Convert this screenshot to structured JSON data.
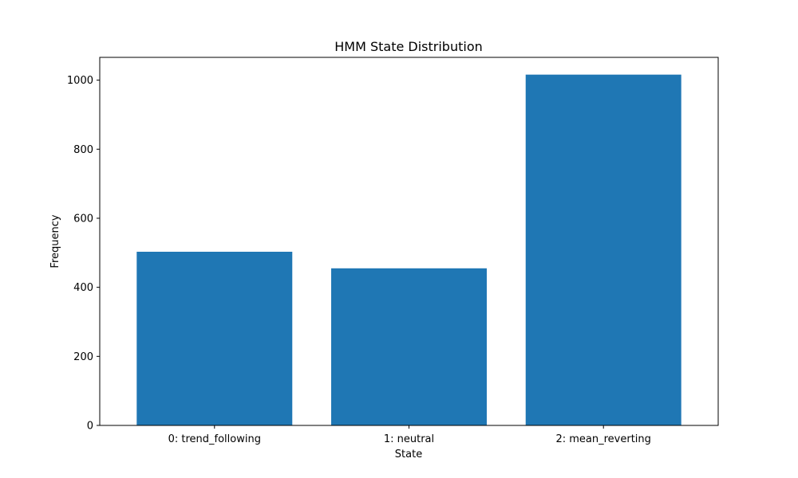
{
  "chart_data": {
    "type": "bar",
    "title": "HMM State Distribution",
    "xlabel": "State",
    "ylabel": "Frequency",
    "categories": [
      "0: trend_following",
      "1: neutral",
      "2: mean_reverting"
    ],
    "values": [
      503,
      455,
      1016
    ],
    "ylim": [
      0,
      1066
    ],
    "yticks": [
      0,
      200,
      400,
      600,
      800,
      1000
    ],
    "bar_color": "#1f77b4",
    "grid": false,
    "legend": "none"
  }
}
